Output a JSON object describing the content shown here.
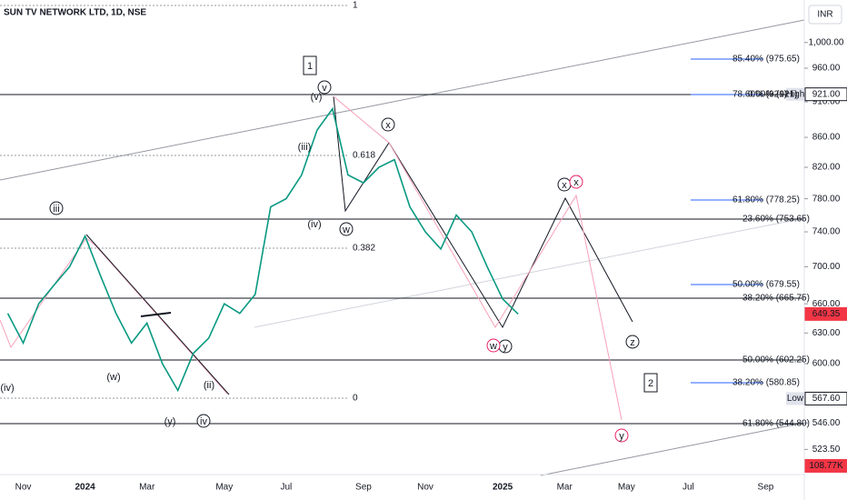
{
  "chart_data": {
    "type": "line",
    "title": "SUN TV NETWORK LTD, 1D, NSE",
    "currency": "INR",
    "log_scale": true,
    "color": "#089981",
    "categories": [
      null,
      "Nov",
      null,
      null,
      null,
      "2024",
      null,
      null,
      null,
      "Mar",
      null,
      null,
      null,
      null,
      "May",
      null,
      null,
      null,
      "Jul",
      null,
      null,
      null,
      null,
      "Sep",
      null,
      null,
      null,
      "Nov",
      null,
      null,
      null,
      null,
      "2025",
      null,
      null,
      null,
      "Mar",
      null,
      null,
      null,
      "May",
      null,
      null,
      null,
      "Jul",
      null,
      null,
      null,
      null,
      "Sep",
      null,
      null
    ],
    "values": [
      650,
      620,
      660,
      680,
      700,
      735,
      690,
      650,
      620,
      640,
      600,
      575,
      610,
      625,
      660,
      650,
      670,
      770,
      780,
      810,
      870,
      900,
      810,
      800,
      820,
      830,
      770,
      740,
      720,
      760,
      740,
      700,
      665,
      649.35,
      null,
      null,
      null,
      null,
      null,
      null,
      null,
      null,
      null,
      null,
      null,
      null,
      null,
      null,
      null,
      null,
      null,
      null
    ],
    "ylim": [
      503,
      1070
    ],
    "yticks": [
      {
        "value": 1000,
        "label": "1,000.00"
      },
      {
        "value": 960,
        "label": "960.00"
      },
      {
        "value": 910,
        "label": "910.00"
      },
      {
        "value": 860,
        "label": "860.00"
      },
      {
        "value": 820,
        "label": "820.00"
      },
      {
        "value": 780,
        "label": "780.00"
      },
      {
        "value": 740,
        "label": "740.00"
      },
      {
        "value": 700,
        "label": "700.00"
      },
      {
        "value": 660,
        "label": "660.00"
      },
      {
        "value": 630,
        "label": "630.00"
      },
      {
        "value": 600,
        "label": "600.00"
      },
      {
        "value": 546,
        "label": "546.00"
      },
      {
        "value": 523.5,
        "label": "523.50"
      }
    ],
    "price_labels": [
      {
        "value": 921,
        "label": "921.00",
        "color": "#131722",
        "tag": "High"
      },
      {
        "value": 649.35,
        "label": "649.35",
        "color": "#f23645"
      },
      {
        "value": 567.6,
        "label": "567.60",
        "color": "#131722",
        "tag": "Low"
      },
      {
        "value": 510,
        "label": "108.77K",
        "color": "#f23645"
      }
    ],
    "fib_labels": [
      {
        "text": "85.40% (975.65)",
        "color": "#2962ff"
      },
      {
        "text": "78.60% (921)",
        "color": "#2962ff"
      },
      {
        "text": "0.00% (921)",
        "color": "#131722"
      },
      {
        "text": "61.80% (778.25)",
        "color": "#2962ff"
      },
      {
        "text": "23.60% (753.65)",
        "color": "#131722"
      },
      {
        "text": "50.00% (679.55)",
        "color": "#2962ff"
      },
      {
        "text": "38.20% (665.75)",
        "color": "#131722"
      },
      {
        "text": "50.00% (602.25)",
        "color": "#131722"
      },
      {
        "text": "38.20% (580.85)",
        "color": "#2962ff"
      },
      {
        "text": "61.80% (544.80)",
        "color": "#131722"
      }
    ],
    "fib_ratios": [
      "1",
      "0.618",
      "0.382",
      "0"
    ],
    "annotations": [
      {
        "text": "1",
        "color": "#131722"
      },
      {
        "text": "2",
        "color": "#131722"
      },
      {
        "text": "(v)",
        "color": "#131722"
      },
      {
        "text": "v",
        "color": "#131722"
      },
      {
        "text": "(iii)",
        "color": "#131722"
      },
      {
        "text": "(iv)",
        "color": "#131722"
      },
      {
        "text": "w",
        "color": "#131722"
      },
      {
        "text": "x",
        "color": "#131722"
      },
      {
        "text": "x",
        "color": "#131722"
      },
      {
        "text": "x",
        "color": "#e91e63"
      },
      {
        "text": "y",
        "color": "#131722"
      },
      {
        "text": "w",
        "color": "#e91e63"
      },
      {
        "text": "z",
        "color": "#131722"
      },
      {
        "text": "y",
        "color": "#e91e63"
      },
      {
        "text": "iii",
        "color": "#131722"
      },
      {
        "text": "iv",
        "color": "#131722"
      },
      {
        "text": "(ii)",
        "color": "#131722"
      },
      {
        "text": "(iv)",
        "color": "#131722"
      },
      {
        "text": "(w)",
        "color": "#e91e63"
      },
      {
        "text": "(y)",
        "color": "#e91e63"
      }
    ]
  }
}
